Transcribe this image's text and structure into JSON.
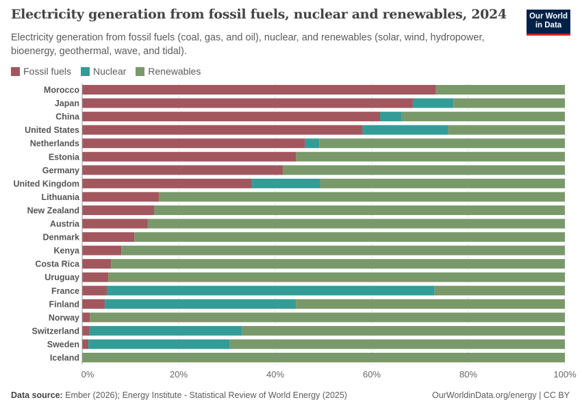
{
  "title": "Electricity generation from fossil fuels, nuclear and renewables, 2024",
  "subtitle": "Electricity generation from fossil fuels (coal, gas, and oil), nuclear, and renewables (solar, wind, hydropower, bioenergy, geothermal, wave, and tidal).",
  "logo": {
    "line1": "Our World",
    "line2": "in Data"
  },
  "footer": {
    "source_label": "Data source:",
    "source": "Ember (2026); Energy Institute - Statistical Review of World Energy (2025)",
    "right": "OurWorldinData.org/energy | CC BY"
  },
  "chart_data": {
    "type": "bar",
    "orientation": "horizontal",
    "stacked": true,
    "title": "Electricity generation from fossil fuels, nuclear and renewables, 2024",
    "xlim": [
      0,
      100
    ],
    "x_ticks": [
      "0%",
      "20%",
      "40%",
      "60%",
      "80%",
      "100%"
    ],
    "grid": true,
    "legend_position": "top-left",
    "categories": [
      "Morocco",
      "Japan",
      "China",
      "United States",
      "Netherlands",
      "Estonia",
      "Germany",
      "United Kingdom",
      "Lithuania",
      "New Zealand",
      "Austria",
      "Denmark",
      "Kenya",
      "Costa Rica",
      "Uruguay",
      "France",
      "Finland",
      "Norway",
      "Switzerland",
      "Sweden",
      "Iceland"
    ],
    "series": [
      {
        "name": "Fossil fuels",
        "color": "#a2575e",
        "values": [
          73.3,
          68.5,
          61.7,
          58.1,
          46.2,
          44.3,
          41.6,
          35.1,
          15.9,
          14.9,
          13.6,
          10.8,
          8.1,
          6.0,
          5.4,
          5.1,
          4.7,
          1.6,
          1.5,
          1.3,
          0.0
        ]
      },
      {
        "name": "Nuclear",
        "color": "#349c97",
        "values": [
          0,
          8.4,
          4.5,
          17.7,
          2.9,
          0,
          0,
          14.2,
          0,
          0,
          0,
          0,
          0,
          0,
          0,
          67.9,
          39.6,
          0,
          31.6,
          29.3,
          0
        ]
      },
      {
        "name": "Renewables",
        "color": "#79996a",
        "values": [
          26.7,
          23.1,
          33.8,
          24.2,
          50.9,
          55.7,
          58.4,
          50.7,
          84.1,
          85.1,
          86.4,
          89.2,
          91.9,
          94.0,
          94.6,
          27.0,
          55.7,
          98.4,
          66.9,
          69.4,
          100.0
        ]
      }
    ]
  }
}
